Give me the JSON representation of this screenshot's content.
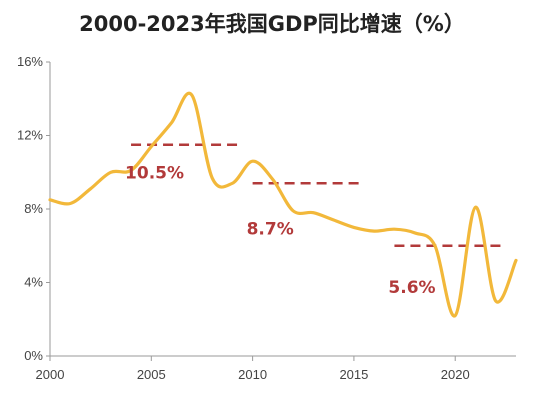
{
  "chart_data": {
    "type": "line",
    "title": "2000-2023年我国GDP同比增速（%）",
    "xlabel": "",
    "ylabel": "",
    "xlim": [
      2000,
      2023
    ],
    "ylim": [
      0,
      16
    ],
    "x_ticks": [
      2000,
      2005,
      2010,
      2015,
      2020
    ],
    "y_ticks": [
      0,
      4,
      8,
      12,
      16
    ],
    "y_tick_labels": [
      "0%",
      "4%",
      "8%",
      "12%",
      "16%"
    ],
    "grid": false,
    "line_color": "#f2b83a",
    "series": [
      {
        "x": [
          2000,
          2001,
          2002,
          2003,
          2004,
          2005,
          2006,
          2007,
          2008,
          2009,
          2010,
          2011,
          2012,
          2013,
          2014,
          2015,
          2016,
          2017,
          2018,
          2019,
          2020,
          2021,
          2022,
          2023
        ],
        "values": [
          8.5,
          8.3,
          9.1,
          10.0,
          10.1,
          11.4,
          12.7,
          14.2,
          9.7,
          9.4,
          10.6,
          9.6,
          7.9,
          7.8,
          7.4,
          7.0,
          6.8,
          6.9,
          6.7,
          6.0,
          2.2,
          8.1,
          3.0,
          5.2
        ]
      }
    ],
    "averages": {
      "color": "#b23a3a",
      "items": [
        {
          "label": "10.5%",
          "value": 11.5,
          "x_start": 2004,
          "x_end": 2009.5
        },
        {
          "label": "8.7%",
          "value": 9.4,
          "x_start": 2010,
          "x_end": 2015.5
        },
        {
          "label": "5.6%",
          "value": 6.0,
          "x_start": 2017,
          "x_end": 2022.5
        }
      ]
    }
  }
}
